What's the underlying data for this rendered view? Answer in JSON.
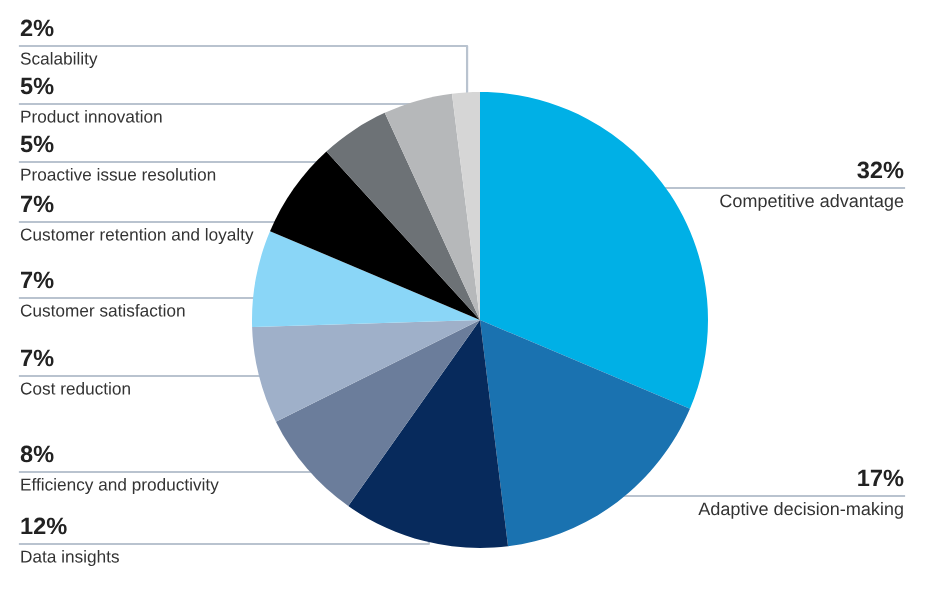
{
  "chart_data": {
    "type": "pie",
    "categories": [
      "Competitive advantage",
      "Adaptive decision-making",
      "Data insights",
      "Efficiency and productivity",
      "Cost reduction",
      "Customer satisfaction",
      "Customer retention and loyalty",
      "Proactive issue resolution",
      "Product innovation",
      "Scalability"
    ],
    "values": [
      32,
      17,
      12,
      8,
      7,
      7,
      7,
      5,
      5,
      2
    ],
    "value_labels": [
      "32%",
      "17%",
      "12%",
      "8%",
      "7%",
      "7%",
      "7%",
      "5%",
      "5%",
      "2%"
    ],
    "colors": [
      "#00b0e6",
      "#1a72b0",
      "#072a5c",
      "#6b7d9b",
      "#9fb0c9",
      "#8ad6f7",
      "#000000",
      "#6d7276",
      "#b6b8ba",
      "#d6d6d6"
    ]
  }
}
